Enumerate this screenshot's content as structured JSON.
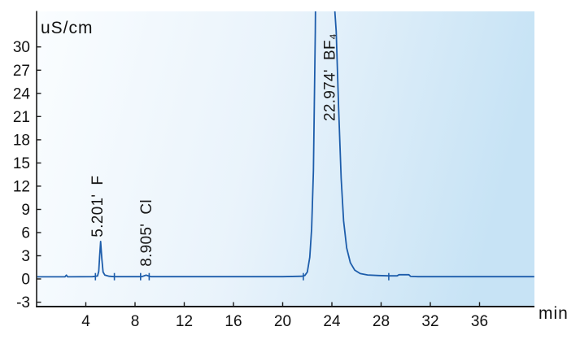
{
  "chart_data": {
    "type": "line",
    "title": "",
    "y_axis": {
      "unit": "uS/cm",
      "ticks": [
        30,
        27,
        24,
        21,
        18,
        15,
        12,
        9,
        6,
        3,
        0,
        -3
      ],
      "range": [
        -3.57,
        34.6
      ]
    },
    "x_axis": {
      "unit": "min",
      "ticks": [
        4,
        8,
        12,
        16,
        20,
        24,
        28,
        32,
        36
      ],
      "range": [
        0,
        40.46
      ]
    },
    "peaks": [
      {
        "retention_time": "5.201",
        "ion": "F",
        "annotation": "5.201'  F",
        "label_pos": [
          5.36,
          5.4
        ]
      },
      {
        "retention_time": "8.905",
        "ion": "Cl",
        "annotation": "8.905'  Cl",
        "label_pos": [
          9.32,
          1.6
        ]
      },
      {
        "retention_time": "22.974",
        "ion": "BF₄",
        "annotation": "22.974'  BF₄",
        "label_pos": [
          24.23,
          20.4
        ]
      }
    ],
    "trace": [
      [
        0,
        0.28
      ],
      [
        2.3,
        0.28
      ],
      [
        2.42,
        0.5
      ],
      [
        2.52,
        0.28
      ],
      [
        4.55,
        0.3
      ],
      [
        4.95,
        0.38
      ],
      [
        5.05,
        1.0
      ],
      [
        5.12,
        2.8
      ],
      [
        5.2,
        4.85
      ],
      [
        5.3,
        2.6
      ],
      [
        5.4,
        0.9
      ],
      [
        5.55,
        0.5
      ],
      [
        5.9,
        0.35
      ],
      [
        6.3,
        0.3
      ],
      [
        8.55,
        0.3
      ],
      [
        8.75,
        0.42
      ],
      [
        8.9,
        0.5
      ],
      [
        9.1,
        0.38
      ],
      [
        9.3,
        0.3
      ],
      [
        20,
        0.3
      ],
      [
        21.55,
        0.35
      ],
      [
        21.8,
        0.45
      ],
      [
        22.0,
        0.9
      ],
      [
        22.2,
        2.8
      ],
      [
        22.35,
        6.5
      ],
      [
        22.5,
        14
      ],
      [
        22.65,
        32
      ],
      [
        22.8,
        62
      ],
      [
        22.974,
        100
      ],
      [
        23.3,
        72
      ],
      [
        23.8,
        46
      ],
      [
        24.1,
        38
      ],
      [
        24.35,
        32
      ],
      [
        24.55,
        22
      ],
      [
        24.75,
        13
      ],
      [
        24.95,
        7.5
      ],
      [
        25.2,
        4.0
      ],
      [
        25.5,
        2.1
      ],
      [
        25.85,
        1.15
      ],
      [
        26.3,
        0.7
      ],
      [
        26.9,
        0.52
      ],
      [
        27.8,
        0.45
      ],
      [
        28.6,
        0.4
      ],
      [
        29.3,
        0.4
      ],
      [
        29.45,
        0.55
      ],
      [
        30.25,
        0.55
      ],
      [
        30.4,
        0.33
      ],
      [
        31.0,
        0.3
      ],
      [
        40.45,
        0.3
      ]
    ],
    "baseline_markers": [
      4.78,
      6.32,
      8.45,
      9.15,
      21.68,
      28.62
    ],
    "baseline_level": 0.3,
    "colors": {
      "trace": "#1d5dab",
      "axis": "#1a1a1a",
      "text": "#111111",
      "plot_bg_left": "#fafdff",
      "plot_bg_mid": "#e9f3fb",
      "plot_bg_right": "#c7e3f5"
    },
    "legend": null,
    "grid": "off"
  }
}
